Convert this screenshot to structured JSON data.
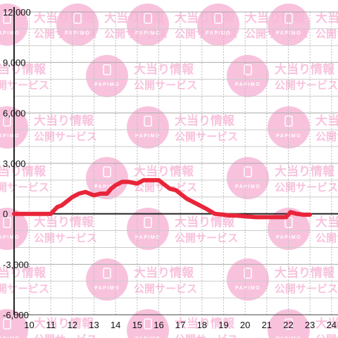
{
  "chart_data": {
    "type": "line",
    "xlim": [
      9.3,
      24.3
    ],
    "ylim": [
      -6000,
      12000
    ],
    "x_ticks": [
      10,
      11,
      12,
      13,
      14,
      15,
      16,
      17,
      18,
      19,
      20,
      21,
      22,
      23,
      24
    ],
    "y_ticks": [
      12000,
      9000,
      6000,
      3000,
      0,
      -3000,
      -6000
    ],
    "x_tick_labels": [
      "10",
      "11",
      "12",
      "13",
      "14",
      "15",
      "16",
      "17",
      "18",
      "19",
      "20",
      "21",
      "22",
      "23",
      "24"
    ],
    "y_tick_labels": [
      "12,000",
      "9,000",
      "6,000",
      "3,000",
      "0",
      "-3,000",
      "-6,000"
    ],
    "grid": true,
    "series": [
      {
        "color": "#e8253a",
        "x": [
          9.3,
          10.5,
          11.0,
          11.3,
          11.5,
          11.8,
          12.0,
          12.3,
          12.6,
          13.0,
          13.3,
          13.6,
          13.8,
          14.0,
          14.3,
          14.6,
          15.0,
          15.3,
          15.6,
          16.0,
          16.2,
          16.5,
          16.8,
          17.0,
          17.3,
          17.6,
          17.9,
          18.2,
          18.6,
          19.0,
          19.3,
          19.6,
          20.0,
          20.5,
          21.0,
          21.5,
          21.9,
          22.1,
          22.4,
          22.7,
          23.0
        ],
        "y": [
          0,
          0,
          0,
          400,
          500,
          800,
          1000,
          1200,
          1300,
          1100,
          1200,
          1200,
          1500,
          1700,
          1900,
          1900,
          1800,
          2000,
          2000,
          2000,
          1800,
          1500,
          1400,
          1200,
          900,
          700,
          500,
          300,
          0,
          -50,
          -100,
          -100,
          -150,
          -200,
          -200,
          -200,
          -200,
          100,
          0,
          -50,
          -50
        ]
      }
    ]
  },
  "watermark": {
    "line1": "大当り情報",
    "line2": "公開サービス",
    "logo_text": "PAPIMO",
    "color": "#f7b8d8"
  }
}
